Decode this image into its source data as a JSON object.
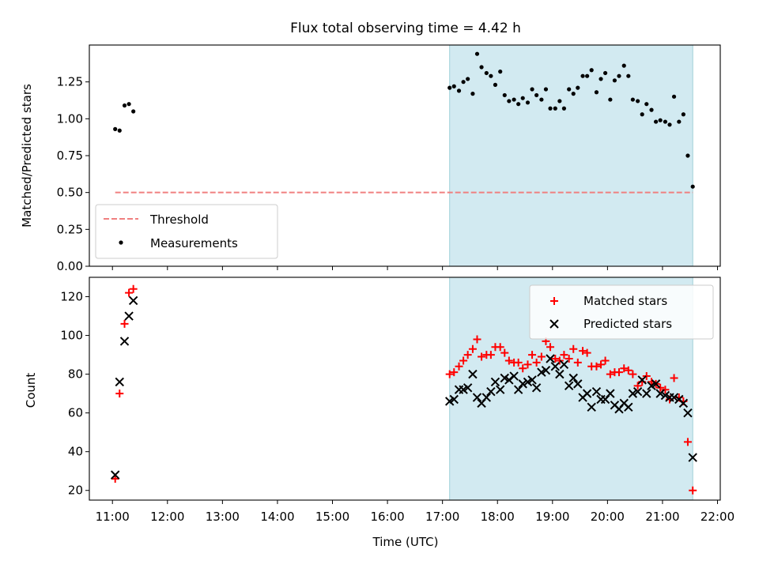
{
  "title": "Flux total observing time = 4.42 h",
  "colors": {
    "threshold": "#f08080",
    "measurement": "#000000",
    "matched": "#ff0000",
    "predicted": "#000000",
    "shade_fill": "#add8e6",
    "shade_edge": "#9fd0d8"
  },
  "chart_data": [
    {
      "type": "scatter",
      "xlabel": "",
      "ylabel": "Matched/Predicted stars",
      "xlim_hours": [
        10.58,
        22.05
      ],
      "ylim": [
        0.0,
        1.5
      ],
      "yticks": [
        "0.00",
        "0.25",
        "0.50",
        "0.75",
        "1.00",
        "1.25"
      ],
      "shaded_region_hours": [
        17.13,
        21.55
      ],
      "legend": {
        "placement": "lower-left",
        "entries": [
          "Threshold",
          "Measurements"
        ]
      },
      "threshold": {
        "name": "Threshold",
        "value": 0.5,
        "x_range_hours": [
          11.05,
          21.55
        ],
        "style": "dashed"
      },
      "measurements": {
        "name": "Measurements",
        "x_hours": [
          11.05,
          11.13,
          11.22,
          11.3,
          11.38,
          17.13,
          17.21,
          17.3,
          17.38,
          17.46,
          17.55,
          17.63,
          17.71,
          17.8,
          17.88,
          17.96,
          18.05,
          18.13,
          18.21,
          18.3,
          18.38,
          18.46,
          18.55,
          18.63,
          18.71,
          18.8,
          18.88,
          18.96,
          19.05,
          19.13,
          19.21,
          19.3,
          19.38,
          19.46,
          19.55,
          19.63,
          19.71,
          19.8,
          19.88,
          19.96,
          20.05,
          20.13,
          20.21,
          20.3,
          20.38,
          20.46,
          20.55,
          20.63,
          20.71,
          20.8,
          20.88,
          20.96,
          21.05,
          21.13,
          21.21,
          21.3,
          21.38,
          21.46,
          21.55
        ],
        "y": [
          0.93,
          0.92,
          1.09,
          1.1,
          1.05,
          1.21,
          1.22,
          1.19,
          1.25,
          1.27,
          1.17,
          1.44,
          1.35,
          1.31,
          1.29,
          1.23,
          1.32,
          1.16,
          1.12,
          1.13,
          1.1,
          1.14,
          1.11,
          1.2,
          1.16,
          1.13,
          1.2,
          1.07,
          1.07,
          1.12,
          1.07,
          1.2,
          1.17,
          1.21,
          1.29,
          1.29,
          1.33,
          1.18,
          1.27,
          1.31,
          1.13,
          1.26,
          1.29,
          1.36,
          1.29,
          1.13,
          1.12,
          1.03,
          1.1,
          1.06,
          0.98,
          0.99,
          0.98,
          0.96,
          1.15,
          0.98,
          1.03,
          0.75,
          0.54
        ]
      }
    },
    {
      "type": "scatter",
      "xlabel": "Time (UTC)",
      "ylabel": "Count",
      "xlim_hours": [
        10.58,
        22.05
      ],
      "ylim": [
        15,
        130
      ],
      "yticks": [
        "20",
        "40",
        "60",
        "80",
        "100",
        "120"
      ],
      "xticks": [
        "11:00",
        "12:00",
        "13:00",
        "14:00",
        "15:00",
        "16:00",
        "17:00",
        "18:00",
        "19:00",
        "20:00",
        "21:00",
        "22:00"
      ],
      "xtick_hours": [
        11,
        12,
        13,
        14,
        15,
        16,
        17,
        18,
        19,
        20,
        21,
        22
      ],
      "shaded_region_hours": [
        17.13,
        21.55
      ],
      "legend": {
        "placement": "top-right",
        "entries": [
          "Matched stars",
          "Predicted stars"
        ]
      },
      "series": [
        {
          "name": "Matched stars",
          "marker": "plus",
          "x_hours": [
            11.05,
            11.13,
            11.22,
            11.3,
            11.38,
            17.13,
            17.21,
            17.3,
            17.38,
            17.46,
            17.55,
            17.63,
            17.71,
            17.8,
            17.88,
            17.96,
            18.05,
            18.13,
            18.21,
            18.3,
            18.38,
            18.46,
            18.55,
            18.63,
            18.71,
            18.8,
            18.88,
            18.96,
            19.05,
            19.13,
            19.21,
            19.3,
            19.38,
            19.46,
            19.55,
            19.63,
            19.71,
            19.8,
            19.88,
            19.96,
            20.05,
            20.13,
            20.21,
            20.3,
            20.38,
            20.46,
            20.55,
            20.63,
            20.71,
            20.8,
            20.88,
            20.96,
            21.05,
            21.13,
            21.21,
            21.3,
            21.38,
            21.46,
            21.55
          ],
          "values": [
            26,
            70,
            106,
            122,
            124,
            80,
            81,
            84,
            87,
            90,
            93,
            98,
            89,
            90,
            90,
            94,
            94,
            91,
            87,
            86,
            86,
            83,
            85,
            90,
            86,
            89,
            97,
            94,
            88,
            87,
            90,
            88,
            93,
            86,
            92,
            91,
            84,
            84,
            85,
            87,
            80,
            81,
            81,
            83,
            82,
            80,
            74,
            76,
            79,
            76,
            75,
            73,
            72,
            67,
            78,
            68,
            66,
            45,
            20
          ]
        },
        {
          "name": "Predicted stars",
          "marker": "x",
          "x_hours": [
            11.05,
            11.13,
            11.22,
            11.3,
            11.38,
            17.13,
            17.21,
            17.3,
            17.38,
            17.46,
            17.55,
            17.63,
            17.71,
            17.8,
            17.88,
            17.96,
            18.05,
            18.13,
            18.21,
            18.3,
            18.38,
            18.46,
            18.55,
            18.63,
            18.71,
            18.8,
            18.88,
            18.96,
            19.05,
            19.13,
            19.21,
            19.3,
            19.38,
            19.46,
            19.55,
            19.63,
            19.71,
            19.8,
            19.88,
            19.96,
            20.05,
            20.13,
            20.21,
            20.3,
            20.38,
            20.46,
            20.55,
            20.63,
            20.71,
            20.8,
            20.88,
            20.96,
            21.05,
            21.13,
            21.21,
            21.3,
            21.38,
            21.46,
            21.55
          ],
          "values": [
            28,
            76,
            97,
            110,
            118,
            66,
            67,
            72,
            72,
            73,
            80,
            68,
            65,
            68,
            71,
            76,
            72,
            78,
            77,
            79,
            72,
            75,
            76,
            77,
            73,
            81,
            82,
            88,
            84,
            80,
            85,
            74,
            78,
            75,
            68,
            70,
            63,
            71,
            67,
            67,
            70,
            64,
            62,
            65,
            63,
            70,
            71,
            77,
            70,
            74,
            75,
            70,
            69,
            68,
            68,
            67,
            65,
            60,
            37
          ]
        }
      ]
    }
  ]
}
